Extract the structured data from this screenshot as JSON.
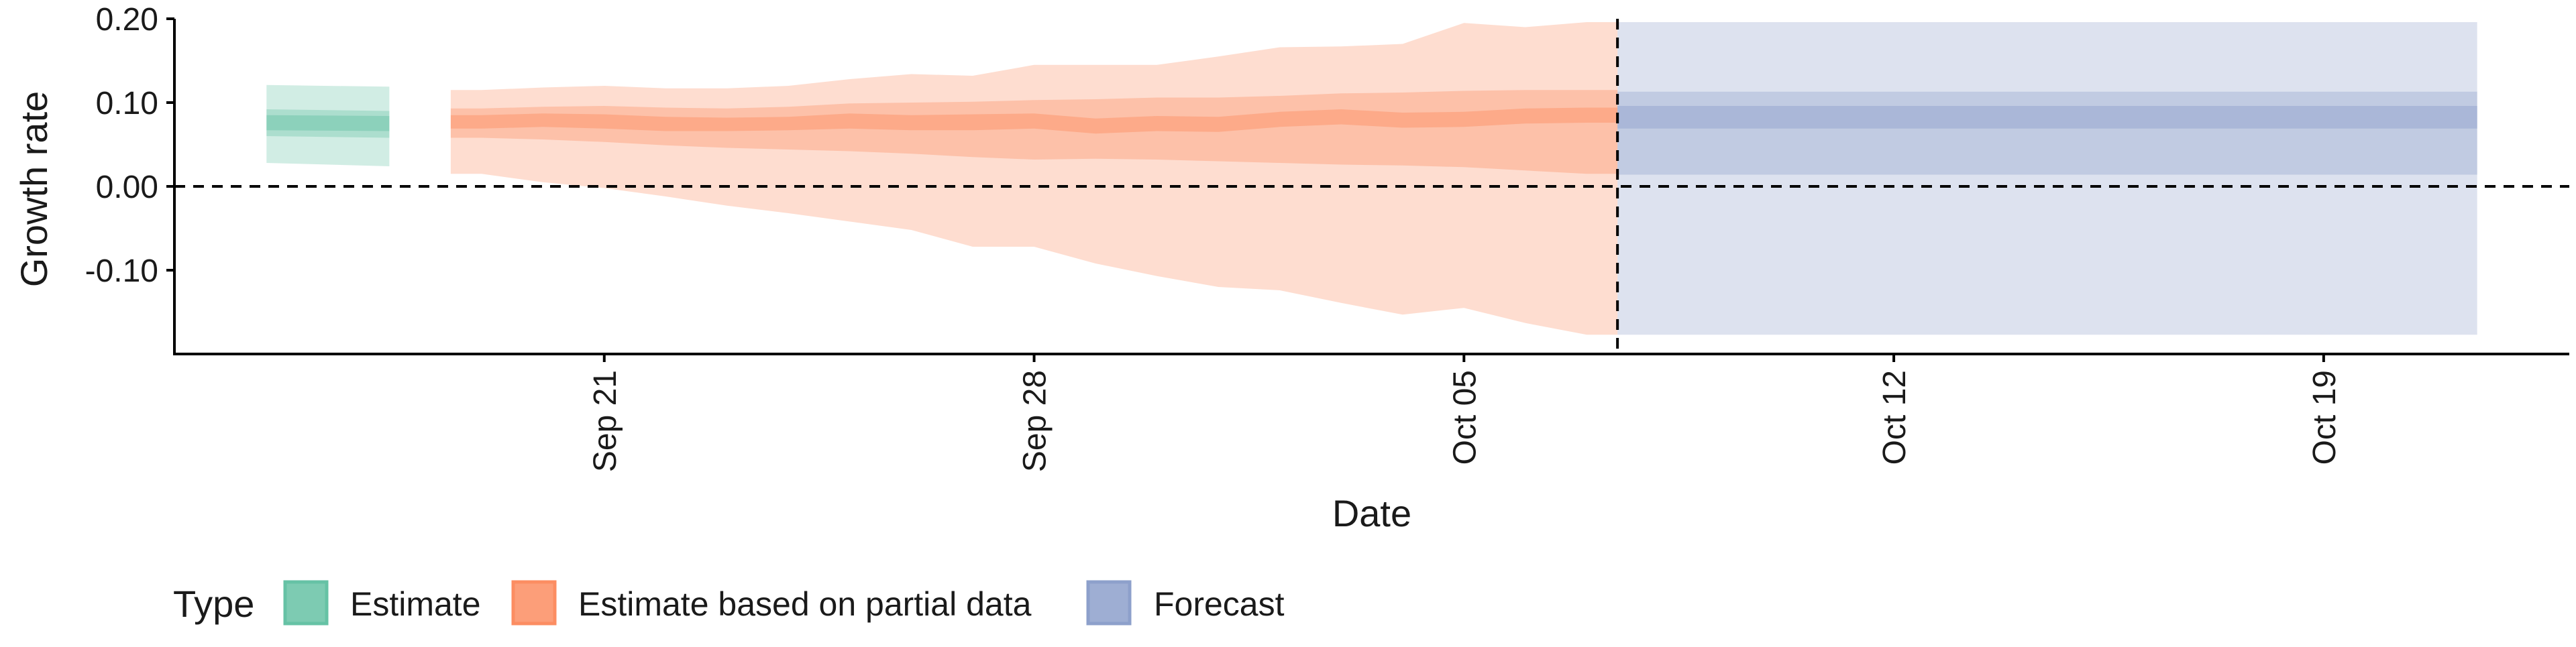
{
  "chart_data": {
    "type": "area",
    "title": "",
    "xlabel": "Date",
    "ylabel": "Growth rate",
    "ylim": [
      -0.2,
      0.2
    ],
    "xlim": [
      "2020-09-14",
      "2020-10-23"
    ],
    "y_ticks": [
      "0.20",
      "0.10",
      "0.00",
      "-0.10"
    ],
    "x_ticks": [
      {
        "date": "2020-09-21",
        "label": "Sep 21"
      },
      {
        "date": "2020-09-28",
        "label": "Sep 28"
      },
      {
        "date": "2020-10-05",
        "label": "Oct 05"
      },
      {
        "date": "2020-10-12",
        "label": "Oct 12"
      },
      {
        "date": "2020-10-19",
        "label": "Oct 19"
      }
    ],
    "reference_lines": {
      "horizontal_y": 0.0,
      "vertical_date": "2020-10-07"
    },
    "grid": false,
    "legend": {
      "title": "Type",
      "position": "bottom",
      "entries": [
        "Estimate",
        "Estimate based on partial data",
        "Forecast"
      ]
    },
    "series": [
      {
        "name": "Estimate",
        "color": "#66c2a5",
        "points": [
          {
            "date": "2020-09-16",
            "median": 0.077,
            "lower20": 0.067,
            "upper20": 0.085,
            "lower50": 0.06,
            "upper50": 0.092,
            "lower90": 0.028,
            "upper90": 0.121
          },
          {
            "date": "2020-09-17",
            "median": 0.075,
            "lower20": 0.066,
            "upper20": 0.084,
            "lower50": 0.058,
            "upper50": 0.09,
            "lower90": 0.024,
            "upper90": 0.119
          }
        ]
      },
      {
        "name": "Estimate based on partial data",
        "color": "#fc8d62",
        "points": [
          {
            "date": "2020-09-19",
            "median": 0.077,
            "lower20": 0.069,
            "upper20": 0.085,
            "lower50": 0.058,
            "upper50": 0.093,
            "lower90": 0.015,
            "upper90": 0.115
          },
          {
            "date": "2020-09-20",
            "median": 0.079,
            "lower20": 0.071,
            "upper20": 0.087,
            "lower50": 0.056,
            "upper50": 0.095,
            "lower90": 0.005,
            "upper90": 0.118
          },
          {
            "date": "2020-09-21",
            "median": 0.077,
            "lower20": 0.069,
            "upper20": 0.086,
            "lower50": 0.053,
            "upper50": 0.096,
            "lower90": -0.002,
            "upper90": 0.12
          },
          {
            "date": "2020-09-22",
            "median": 0.074,
            "lower20": 0.066,
            "upper20": 0.083,
            "lower50": 0.049,
            "upper50": 0.094,
            "lower90": -0.012,
            "upper90": 0.117
          },
          {
            "date": "2020-09-23",
            "median": 0.074,
            "lower20": 0.066,
            "upper20": 0.082,
            "lower50": 0.046,
            "upper50": 0.093,
            "lower90": -0.023,
            "upper90": 0.117
          },
          {
            "date": "2020-09-24",
            "median": 0.075,
            "lower20": 0.067,
            "upper20": 0.083,
            "lower50": 0.044,
            "upper50": 0.095,
            "lower90": -0.032,
            "upper90": 0.12
          },
          {
            "date": "2020-09-25",
            "median": 0.078,
            "lower20": 0.069,
            "upper20": 0.087,
            "lower50": 0.042,
            "upper50": 0.099,
            "lower90": -0.042,
            "upper90": 0.128
          },
          {
            "date": "2020-09-26",
            "median": 0.076,
            "lower20": 0.067,
            "upper20": 0.085,
            "lower50": 0.039,
            "upper50": 0.1,
            "lower90": -0.052,
            "upper90": 0.134
          },
          {
            "date": "2020-09-27",
            "median": 0.076,
            "lower20": 0.067,
            "upper20": 0.086,
            "lower50": 0.035,
            "upper50": 0.101,
            "lower90": -0.072,
            "upper90": 0.132
          },
          {
            "date": "2020-09-28",
            "median": 0.078,
            "lower20": 0.069,
            "upper20": 0.087,
            "lower50": 0.032,
            "upper50": 0.103,
            "lower90": -0.072,
            "upper90": 0.145
          },
          {
            "date": "2020-09-29",
            "median": 0.072,
            "lower20": 0.063,
            "upper20": 0.081,
            "lower50": 0.033,
            "upper50": 0.104,
            "lower90": -0.092,
            "upper90": 0.145
          },
          {
            "date": "2020-09-30",
            "median": 0.075,
            "lower20": 0.066,
            "upper20": 0.084,
            "lower50": 0.032,
            "upper50": 0.106,
            "lower90": -0.107,
            "upper90": 0.145
          },
          {
            "date": "2020-10-01",
            "median": 0.074,
            "lower20": 0.065,
            "upper20": 0.083,
            "lower50": 0.03,
            "upper50": 0.106,
            "lower90": -0.12,
            "upper90": 0.155
          },
          {
            "date": "2020-10-02",
            "median": 0.08,
            "lower20": 0.071,
            "upper20": 0.089,
            "lower50": 0.028,
            "upper50": 0.108,
            "lower90": -0.124,
            "upper90": 0.166
          },
          {
            "date": "2020-10-03",
            "median": 0.083,
            "lower20": 0.074,
            "upper20": 0.092,
            "lower50": 0.026,
            "upper50": 0.111,
            "lower90": -0.139,
            "upper90": 0.167
          },
          {
            "date": "2020-10-04",
            "median": 0.079,
            "lower20": 0.07,
            "upper20": 0.088,
            "lower50": 0.025,
            "upper50": 0.112,
            "lower90": -0.153,
            "upper90": 0.17
          },
          {
            "date": "2020-10-05",
            "median": 0.08,
            "lower20": 0.071,
            "upper20": 0.089,
            "lower50": 0.023,
            "upper50": 0.114,
            "lower90": -0.145,
            "upper90": 0.195
          },
          {
            "date": "2020-10-06",
            "median": 0.084,
            "lower20": 0.075,
            "upper20": 0.093,
            "lower50": 0.019,
            "upper50": 0.115,
            "lower90": -0.163,
            "upper90": 0.19
          },
          {
            "date": "2020-10-07",
            "median": 0.085,
            "lower20": 0.076,
            "upper20": 0.094,
            "lower50": 0.015,
            "upper50": 0.115,
            "lower90": -0.177,
            "upper90": 0.196
          }
        ]
      },
      {
        "name": "Forecast",
        "color": "#8da0cb",
        "points": [
          {
            "date": "2020-10-08",
            "median": 0.082,
            "lower20": 0.069,
            "upper20": 0.096,
            "lower50": 0.014,
            "upper50": 0.113,
            "lower90": -0.177,
            "upper90": 0.196
          },
          {
            "date": "2020-10-21",
            "median": 0.082,
            "lower20": 0.069,
            "upper20": 0.096,
            "lower50": 0.014,
            "upper50": 0.113,
            "lower90": -0.177,
            "upper90": 0.196
          }
        ]
      }
    ]
  }
}
